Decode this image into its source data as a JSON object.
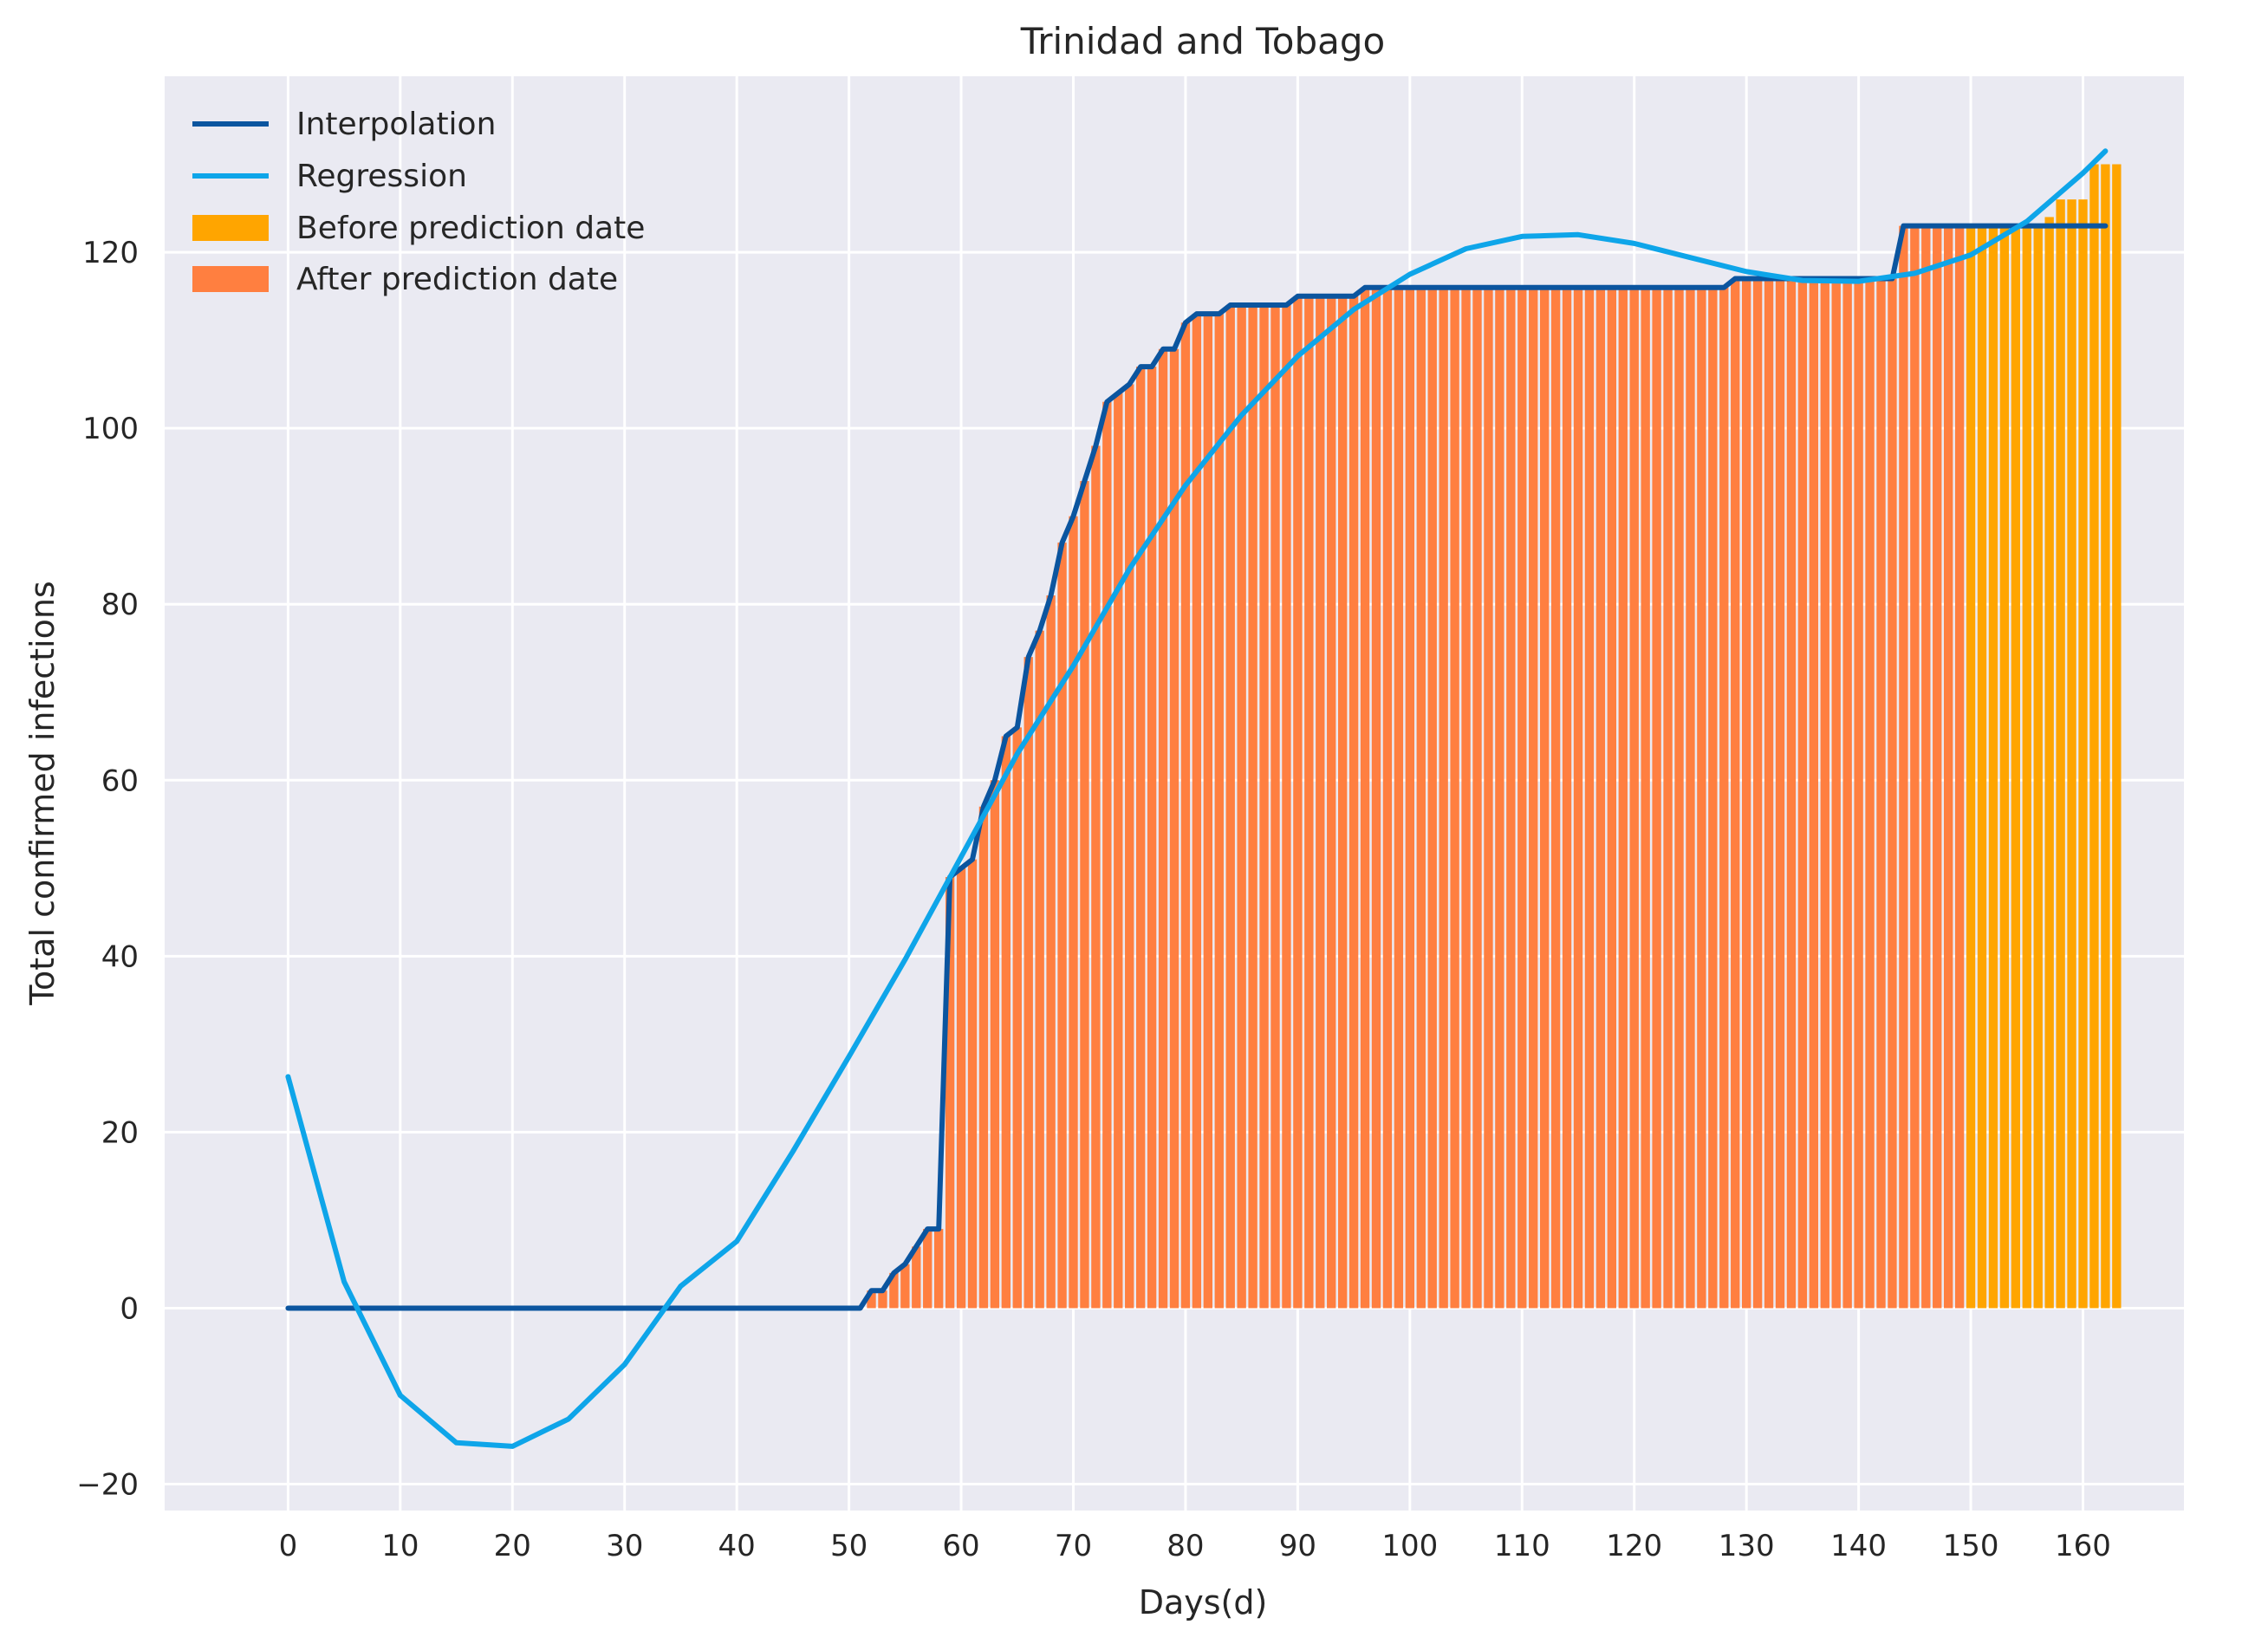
{
  "chart_data": {
    "type": "bar",
    "title": "Trinidad and Tobago",
    "xlabel": "Days(d)",
    "ylabel": "Total confirmed infections",
    "xlim": [
      -11,
      169
    ],
    "ylim": [
      -23,
      140
    ],
    "xticks": [
      0,
      10,
      20,
      30,
      40,
      50,
      60,
      70,
      80,
      90,
      100,
      110,
      120,
      130,
      140,
      150,
      160
    ],
    "yticks": [
      -20,
      0,
      20,
      40,
      60,
      80,
      100,
      120
    ],
    "xtick_labels": [
      "0",
      "10",
      "20",
      "30",
      "40",
      "50",
      "60",
      "70",
      "80",
      "90",
      "100",
      "110",
      "120",
      "130",
      "140",
      "150",
      "160"
    ],
    "ytick_labels": [
      "−20",
      "0",
      "20",
      "40",
      "60",
      "80",
      "100",
      "120"
    ],
    "grid": true,
    "legend_position": "top-left",
    "legend": [
      {
        "label": "Interpolation",
        "kind": "line",
        "color": "#0b559f"
      },
      {
        "label": "Regression",
        "kind": "line",
        "color": "#0ea5e9"
      },
      {
        "label": "Before prediction date",
        "kind": "patch",
        "color": "#ffa500"
      },
      {
        "label": "After prediction date",
        "kind": "patch",
        "color": "#ff7f40"
      }
    ],
    "prediction_day": 150,
    "colors": {
      "background": "#eaeaf2",
      "grid": "#ffffff",
      "interpolation": "#0b559f",
      "regression": "#0ea5e9",
      "before": "#ffa500",
      "after": "#ff7f40"
    },
    "series": [
      {
        "name": "Interpolation",
        "type": "line",
        "x": [
          0,
          51,
          52,
          53,
          54,
          55,
          56,
          57,
          58,
          59,
          60,
          61,
          62,
          63,
          64,
          65,
          66,
          67,
          68,
          69,
          70,
          71,
          72,
          73,
          74,
          75,
          76,
          77,
          78,
          79,
          80,
          81,
          82,
          83,
          84,
          85,
          86,
          87,
          88,
          89,
          90,
          91,
          92,
          93,
          94,
          95,
          96,
          97,
          128,
          129,
          143,
          144,
          162
        ],
        "y": [
          0,
          0,
          2,
          2,
          4,
          5,
          7,
          9,
          9,
          49,
          50,
          51,
          57,
          60,
          65,
          66,
          74,
          77,
          81,
          87,
          90,
          94,
          98,
          103,
          104,
          105,
          107,
          107,
          109,
          109,
          112,
          113,
          113,
          113,
          114,
          114,
          114,
          114,
          114,
          114,
          115,
          115,
          115,
          115,
          115,
          115,
          116,
          116,
          116,
          117,
          117,
          123,
          123
        ]
      },
      {
        "name": "Regression",
        "type": "line",
        "x": [
          0,
          5,
          10,
          15,
          20,
          25,
          30,
          35,
          40,
          45,
          50,
          55,
          60,
          65,
          70,
          75,
          80,
          85,
          90,
          95,
          100,
          105,
          110,
          115,
          120,
          125,
          130,
          135,
          140,
          145,
          150,
          155,
          160,
          162
        ],
        "y": [
          26.3,
          3.0,
          -9.9,
          -15.3,
          -15.7,
          -12.6,
          -6.4,
          2.5,
          7.6,
          17.8,
          28.6,
          39.6,
          51.3,
          63.0,
          73.0,
          84.0,
          93.5,
          101.5,
          108.2,
          113.5,
          117.5,
          120.4,
          121.8,
          122.0,
          121.0,
          119.4,
          117.8,
          116.8,
          116.7,
          117.6,
          119.7,
          123.5,
          129.0,
          131.5
        ]
      },
      {
        "name": "Bars",
        "type": "bar",
        "bar_start_day": 51,
        "values": [
          0,
          2,
          2,
          4,
          5,
          7,
          9,
          9,
          49,
          50,
          51,
          57,
          60,
          65,
          66,
          74,
          77,
          81,
          87,
          90,
          94,
          98,
          103,
          104,
          105,
          107,
          107,
          109,
          109,
          112,
          113,
          113,
          113,
          114,
          114,
          114,
          114,
          114,
          114,
          115,
          115,
          115,
          115,
          115,
          115,
          116,
          116,
          116,
          116,
          116,
          116,
          116,
          116,
          116,
          116,
          116,
          116,
          116,
          116,
          116,
          116,
          116,
          116,
          116,
          116,
          116,
          116,
          116,
          116,
          116,
          116,
          116,
          116,
          116,
          116,
          116,
          116,
          116,
          117,
          117,
          117,
          117,
          117,
          117,
          117,
          117,
          117,
          117,
          117,
          117,
          117,
          117,
          117,
          123,
          123,
          123,
          123,
          123,
          123,
          123,
          123,
          123,
          123,
          123,
          123,
          123,
          124,
          126,
          126,
          126,
          130,
          130,
          130
        ]
      }
    ]
  }
}
